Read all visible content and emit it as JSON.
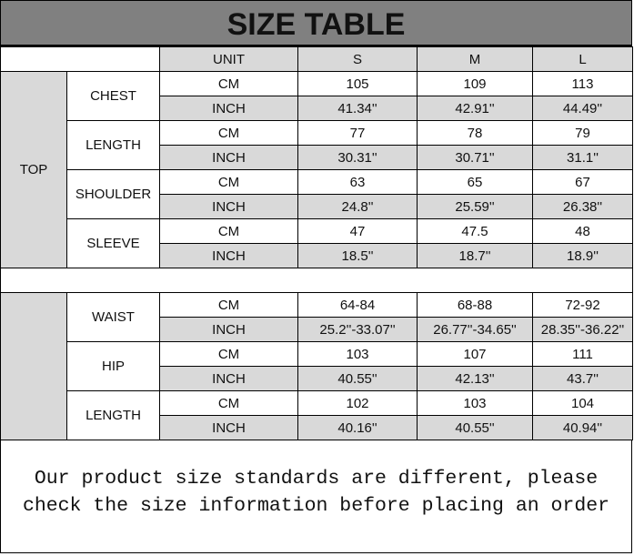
{
  "title": "SIZE TABLE",
  "header": {
    "unit": "UNIT",
    "sizes": [
      "S",
      "M",
      "L"
    ]
  },
  "top": {
    "label": "TOP",
    "rows": [
      {
        "name": "CHEST",
        "cm": [
          "105",
          "109",
          "113"
        ],
        "inch": [
          "41.34''",
          "42.91''",
          "44.49''"
        ]
      },
      {
        "name": "LENGTH",
        "cm": [
          "77",
          "78",
          "79"
        ],
        "inch": [
          "30.31''",
          "30.71''",
          "31.1''"
        ]
      },
      {
        "name": "SHOULDER",
        "cm": [
          "63",
          "65",
          "67"
        ],
        "inch": [
          "24.8''",
          "25.59''",
          "26.38''"
        ]
      },
      {
        "name": "SLEEVE",
        "cm": [
          "47",
          "47.5",
          "48"
        ],
        "inch": [
          "18.5''",
          "18.7''",
          "18.9''"
        ]
      }
    ]
  },
  "bottom": {
    "label": "",
    "rows": [
      {
        "name": "WAIST",
        "cm": [
          "64-84",
          "68-88",
          "72-92"
        ],
        "inch": [
          "25.2''-33.07''",
          "26.77''-34.65''",
          "28.35''-36.22''"
        ]
      },
      {
        "name": "HIP",
        "cm": [
          "103",
          "107",
          "111"
        ],
        "inch": [
          "40.55''",
          "42.13''",
          "43.7''"
        ]
      },
      {
        "name": "LENGTH",
        "cm": [
          "102",
          "103",
          "104"
        ],
        "inch": [
          "40.16''",
          "40.55''",
          "40.94''"
        ]
      }
    ]
  },
  "units": {
    "cm": "CM",
    "inch": "INCH"
  },
  "note": {
    "line1": "Our product size standards are different, please",
    "line2": "check the size information before placing an order"
  }
}
